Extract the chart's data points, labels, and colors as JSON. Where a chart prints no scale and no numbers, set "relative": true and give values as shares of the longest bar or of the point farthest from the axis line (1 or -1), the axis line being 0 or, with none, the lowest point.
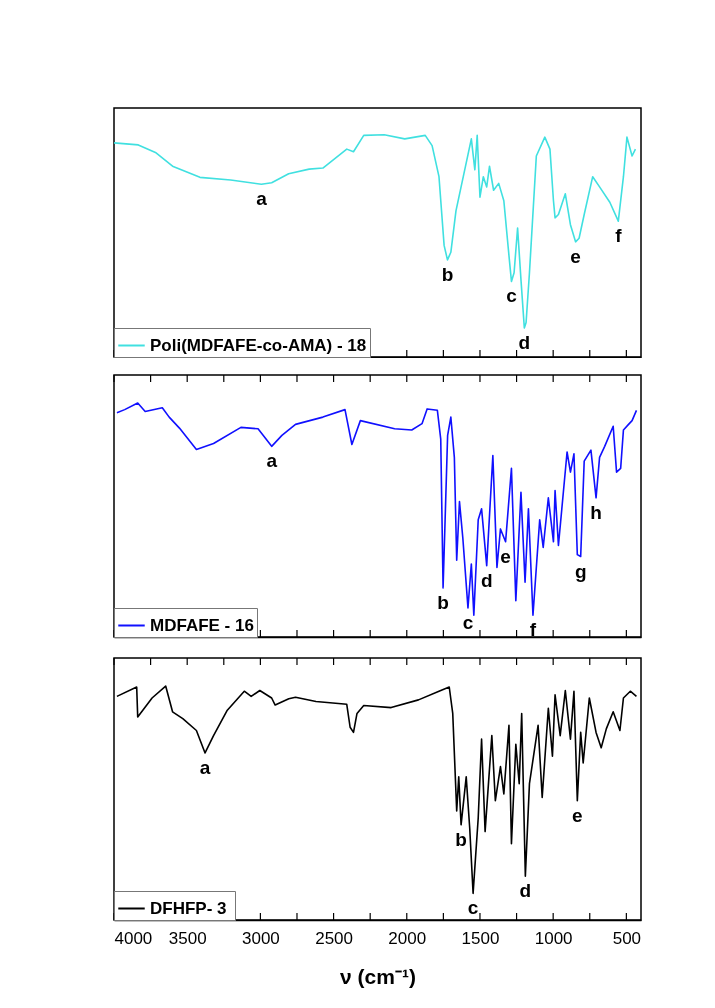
{
  "chart_data": [
    {
      "type": "line",
      "relative": true,
      "xlim": [
        4000,
        400
      ],
      "xticks": [
        4000,
        {
          "value": 3750,
          "label": null
        },
        3500,
        {
          "value": 3250,
          "label": null
        },
        3000,
        {
          "value": 2750,
          "label": null
        },
        2500,
        {
          "value": 2250,
          "label": null
        },
        2000,
        {
          "value": 1750,
          "label": null
        },
        1500,
        {
          "value": 1250,
          "label": null
        },
        1000,
        {
          "value": 750,
          "label": null
        },
        500
      ],
      "tick_labels": false,
      "legend": "bottom left",
      "x": [
        4000,
        3834,
        3717,
        3600,
        3413,
        3203,
        2993,
        2923,
        2807,
        2667,
        2573,
        2410,
        2364,
        2294,
        2154,
        2014,
        1874,
        1827,
        1780,
        1745,
        1722,
        1699,
        1664,
        1594,
        1559,
        1535,
        1519,
        1500,
        1477,
        1454,
        1435,
        1407,
        1372,
        1337,
        1302,
        1285,
        1267,
        1243,
        1220,
        1197,
        1185,
        1162,
        1115,
        1057,
        1022,
        998,
        987,
        964,
        917,
        882,
        847,
        823,
        788,
        730,
        683,
        613,
        555,
        520,
        496,
        461,
        438
      ],
      "series": [
        {
          "name": "Poli(MDFAFE-co-AMA) - 18",
          "color": "#40e0e0",
          "values": [
            0.963,
            0.954,
            0.92,
            0.858,
            0.808,
            0.796,
            0.777,
            0.784,
            0.824,
            0.845,
            0.85,
            0.935,
            0.923,
            0.997,
            1,
            0.981,
            0.997,
            0.951,
            0.811,
            0.502,
            0.437,
            0.471,
            0.657,
            0.873,
            0.981,
            0.842,
            0.997,
            0.719,
            0.811,
            0.765,
            0.858,
            0.75,
            0.781,
            0.703,
            0.456,
            0.34,
            0.379,
            0.58,
            0.348,
            0.131,
            0.155,
            0.379,
            0.904,
            0.989,
            0.935,
            0.703,
            0.626,
            0.641,
            0.734,
            0.595,
            0.518,
            0.534,
            0.641,
            0.811,
            0.765,
            0.696,
            0.611,
            0.811,
            0.989,
            0.904,
            0.935
          ]
        }
      ],
      "annotations": [
        {
          "text": "a",
          "x": 2993,
          "y": 0.777
        },
        {
          "text": "b",
          "x": 1722,
          "y": 0.437
        },
        {
          "text": "c",
          "x": 1285,
          "y": 0.34
        },
        {
          "text": "d",
          "x": 1197,
          "y": 0.131
        },
        {
          "text": "e",
          "x": 847,
          "y": 0.518
        },
        {
          "text": "f",
          "x": 555,
          "y": 0.611
        }
      ]
    },
    {
      "type": "line",
      "relative": true,
      "xlim": [
        4000,
        400
      ],
      "xticks": [
        4000,
        {
          "value": 3750,
          "label": null
        },
        3500,
        {
          "value": 3250,
          "label": null
        },
        3000,
        {
          "value": 2750,
          "label": null
        },
        2500,
        {
          "value": 2250,
          "label": null
        },
        2000,
        {
          "value": 1750,
          "label": null
        },
        1500,
        {
          "value": 1250,
          "label": null
        },
        1000,
        {
          "value": 750,
          "label": null
        },
        500
      ],
      "tick_labels": false,
      "legend": "bottom left",
      "x": [
        3980,
        3927,
        3838,
        3787,
        3670,
        3623,
        3553,
        3437,
        3320,
        3133,
        3016,
        2923,
        2853,
        2760,
        2573,
        2422,
        2375,
        2317,
        2083,
        1966,
        1896,
        1861,
        1791,
        1768,
        1752,
        1721,
        1699,
        1675,
        1659,
        1640,
        1617,
        1582,
        1559,
        1542,
        1512,
        1489,
        1454,
        1412,
        1384,
        1360,
        1325,
        1285,
        1255,
        1220,
        1192,
        1169,
        1138,
        1092,
        1068,
        1033,
        998,
        987,
        964,
        905,
        882,
        858,
        835,
        812,
        788,
        742,
        707,
        683,
        648,
        590,
        567,
        539,
        520,
        485,
        461,
        431
      ],
      "series": [
        {
          "name": "MDFAFE - 16",
          "color": "#1010ff",
          "values": [
            0.959,
            0.972,
            1,
            0.964,
            0.98,
            0.94,
            0.893,
            0.802,
            0.827,
            0.896,
            0.89,
            0.815,
            0.862,
            0.909,
            0.94,
            0.972,
            0.823,
            0.925,
            0.89,
            0.885,
            0.912,
            0.975,
            0.969,
            0.846,
            0.21,
            0.862,
            0.94,
            0.768,
            0.328,
            0.579,
            0.422,
            0.124,
            0.312,
            0.093,
            0.501,
            0.548,
            0.305,
            0.776,
            0.297,
            0.462,
            0.407,
            0.721,
            0.155,
            0.619,
            0.234,
            0.548,
            0.093,
            0.501,
            0.383,
            0.595,
            0.407,
            0.626,
            0.391,
            0.791,
            0.705,
            0.783,
            0.352,
            0.344,
            0.752,
            0.799,
            0.595,
            0.768,
            0.815,
            0.901,
            0.705,
            0.721,
            0.885,
            0.909,
            0.925,
            0.969
          ]
        }
      ],
      "annotations": [
        {
          "text": "a",
          "x": 2923,
          "y": 0.815
        },
        {
          "text": "b",
          "x": 1752,
          "y": 0.21
        },
        {
          "text": "c",
          "x": 1582,
          "y": 0.124
        },
        {
          "text": "d",
          "x": 1454,
          "y": 0.305
        },
        {
          "text": "e",
          "x": 1325,
          "y": 0.407
        },
        {
          "text": "f",
          "x": 1138,
          "y": 0.093
        },
        {
          "text": "g",
          "x": 812,
          "y": 0.344
        },
        {
          "text": "h",
          "x": 707,
          "y": 0.595
        }
      ]
    },
    {
      "type": "line",
      "relative": true,
      "xlim": [
        4000,
        400
      ],
      "xticks": [
        4000,
        {
          "value": 3750,
          "label": null
        },
        3500,
        {
          "value": 3250,
          "label": null
        },
        3000,
        {
          "value": 2750,
          "label": null
        },
        2500,
        {
          "value": 2250,
          "label": null
        },
        2000,
        {
          "value": 1750,
          "label": null
        },
        1500,
        {
          "value": 1250,
          "label": null
        },
        1000,
        {
          "value": 750,
          "label": null
        },
        500
      ],
      "tick_labels": "x",
      "legend": "bottom left",
      "xlabel": "ν (cm⁻¹)",
      "x": [
        3980,
        3845,
        3838,
        3740,
        3647,
        3600,
        3530,
        3437,
        3378,
        3320,
        3226,
        3110,
        3063,
        3004,
        2923,
        2899,
        2806,
        2760,
        2620,
        2410,
        2387,
        2364,
        2340,
        2294,
        2107,
        1920,
        1780,
        1710,
        1686,
        1659,
        1645,
        1629,
        1594,
        1570,
        1547,
        1512,
        1489,
        1465,
        1419,
        1395,
        1360,
        1337,
        1302,
        1285,
        1255,
        1232,
        1215,
        1190,
        1162,
        1103,
        1075,
        1033,
        1005,
        987,
        952,
        917,
        882,
        858,
        835,
        812,
        795,
        753,
        707,
        672,
        637,
        590,
        544,
        520,
        473,
        431
      ],
      "series": [
        {
          "name": "DFHFP-  3",
          "color": "#000000",
          "values": [
            0.956,
            0.996,
            0.868,
            0.949,
            1,
            0.89,
            0.861,
            0.81,
            0.714,
            0.788,
            0.897,
            0.978,
            0.956,
            0.981,
            0.949,
            0.919,
            0.946,
            0.952,
            0.934,
            0.922,
            0.824,
            0.802,
            0.883,
            0.917,
            0.908,
            0.941,
            0.978,
            0.996,
            0.883,
            0.466,
            0.612,
            0.407,
            0.612,
            0.392,
            0.114,
            0.436,
            0.773,
            0.378,
            0.788,
            0.51,
            0.656,
            0.539,
            0.832,
            0.326,
            0.751,
            0.583,
            0.883,
            0.187,
            0.583,
            0.832,
            0.524,
            0.905,
            0.7,
            0.963,
            0.788,
            0.981,
            0.773,
            0.978,
            0.51,
            0.802,
            0.671,
            0.949,
            0.802,
            0.736,
            0.817,
            0.89,
            0.81,
            0.949,
            0.978,
            0.956
          ]
        }
      ],
      "annotations": [
        {
          "text": "a",
          "x": 3378,
          "y": 0.714
        },
        {
          "text": "b",
          "x": 1629,
          "y": 0.407
        },
        {
          "text": "c",
          "x": 1547,
          "y": 0.114
        },
        {
          "text": "d",
          "x": 1190,
          "y": 0.187
        },
        {
          "text": "e",
          "x": 835,
          "y": 0.51
        }
      ]
    }
  ]
}
